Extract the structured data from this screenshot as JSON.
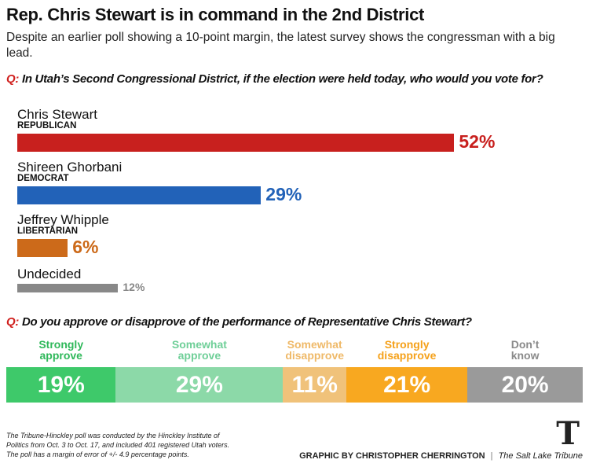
{
  "title": "Rep. Chris Stewart is in command in the 2nd District",
  "subtitle": "Despite an earlier poll showing a 10-point margin, the latest survey shows the congressman with a big lead.",
  "chart_data": [
    {
      "type": "bar",
      "orientation": "horizontal",
      "question_prefix": "Q:",
      "title": "In Utah’s Second Congressional District, if the election were held today, who would you vote for?",
      "categories": [
        "Chris Stewart",
        "Shireen Ghorbani",
        "Jeffrey Whipple",
        "Undecided"
      ],
      "parties": [
        "REPUBLICAN",
        "DEMOCRAT",
        "LIBERTARIAN",
        ""
      ],
      "values": [
        52,
        29,
        6,
        12
      ],
      "labels": [
        "52%",
        "29%",
        "6%",
        "12%"
      ],
      "colors": [
        "#c8201e",
        "#2262b8",
        "#cc6a1a",
        "#888888"
      ],
      "unit": "%"
    },
    {
      "type": "bar",
      "orientation": "stacked-horizontal",
      "question_prefix": "Q:",
      "title": "Do you approve or disapprove of the performance of Representative Chris Stewart?",
      "categories": [
        [
          "Strongly",
          "approve"
        ],
        [
          "Somewhat",
          "approve"
        ],
        [
          "Somewhat",
          "disapprove"
        ],
        [
          "Strongly",
          "disapprove"
        ],
        [
          "Don’t",
          "know"
        ]
      ],
      "values": [
        19,
        29,
        11,
        21,
        20
      ],
      "labels": [
        "19%",
        "29%",
        "11%",
        "21%",
        "20%"
      ],
      "colors": [
        "#3ec96a",
        "#8cd9a8",
        "#f0c27a",
        "#f8a820",
        "#9a9a9a"
      ],
      "label_colors": [
        "#2fb85a",
        "#6fcf98",
        "#efb968",
        "#f5a11a",
        "#8a8a8a"
      ]
    }
  ],
  "footnote": [
    "The Tribune-Hinckley poll was conducted by the Hinckley Institute of",
    "Politics from Oct. 3 to Oct. 17, and included 401 registered Utah voters.",
    "The poll has a margin of error of +/- 4.9 percentage points."
  ],
  "credit": "GRAPHIC BY CHRISTOPHER CHERRINGTON",
  "separator": "|",
  "publication": "The Salt Lake Tribune",
  "logo_letter": "T"
}
